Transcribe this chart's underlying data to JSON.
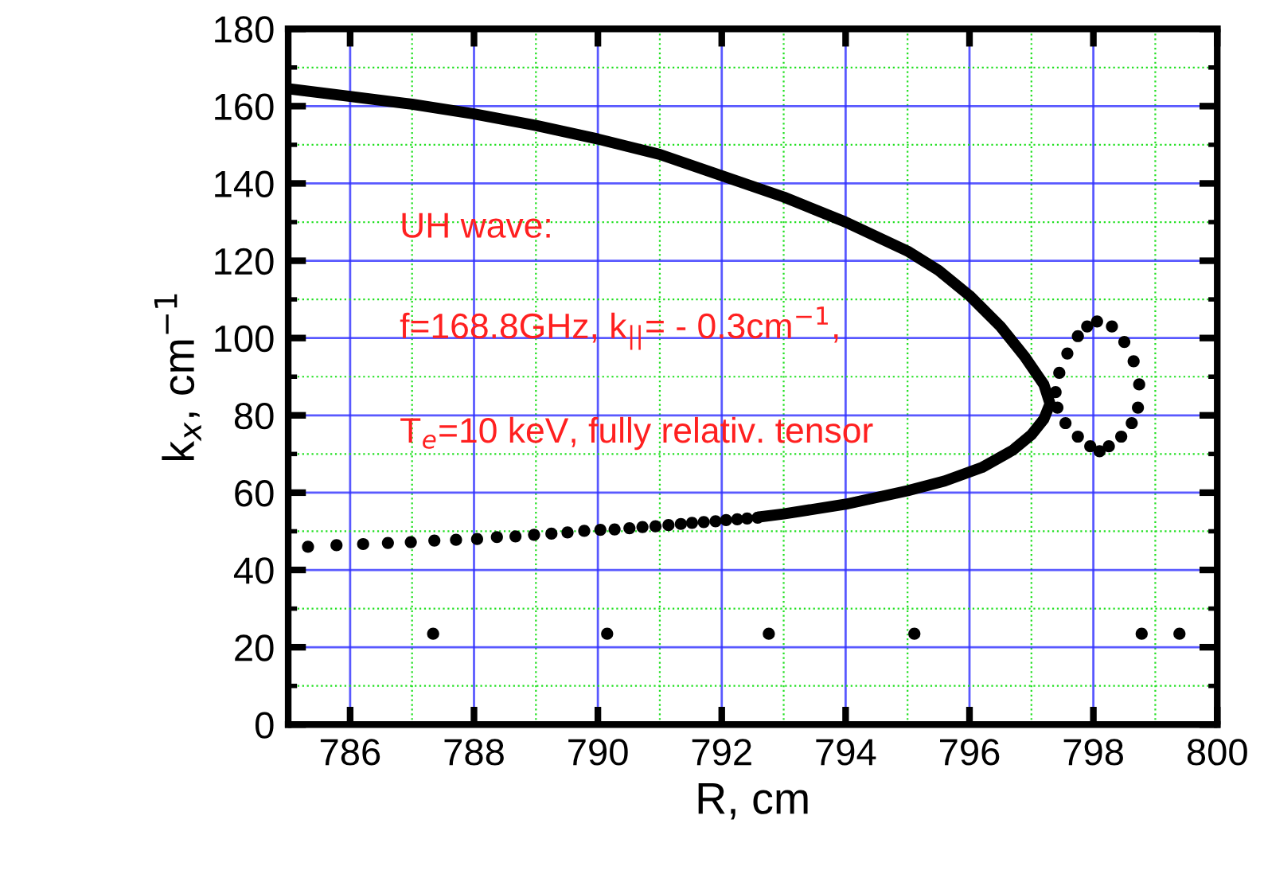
{
  "chart_data": {
    "type": "scatter",
    "xlabel": "R, cm",
    "ylabel": "k$_{x}$, cm$^{−1}$",
    "annotations": [
      "UH wave:",
      "f=168.8GHz, k$_{||}$= - 0.3cm$^{−1}$,",
      "T$_{e}$=10 keV, fully relativ. tensor"
    ],
    "xlim": [
      785,
      800
    ],
    "ylim": [
      0,
      180
    ],
    "xticks": [
      {
        "value": 785,
        "label": null
      },
      786,
      {
        "value": 787,
        "label": null
      },
      788,
      {
        "value": 789,
        "label": null
      },
      790,
      {
        "value": 791,
        "label": null
      },
      792,
      {
        "value": 793,
        "label": null
      },
      794,
      {
        "value": 795,
        "label": null
      },
      796,
      {
        "value": 797,
        "label": null
      },
      798,
      {
        "value": 799,
        "label": null
      },
      800
    ],
    "yticks": [
      0,
      {
        "value": 10,
        "label": null
      },
      20,
      {
        "value": 30,
        "label": null
      },
      40,
      {
        "value": 50,
        "label": null
      },
      60,
      {
        "value": 70,
        "label": null
      },
      80,
      {
        "value": 90,
        "label": null
      },
      100,
      {
        "value": 110,
        "label": null
      },
      120,
      {
        "value": 130,
        "label": null
      },
      140,
      {
        "value": 150,
        "label": null
      },
      160,
      {
        "value": 170,
        "label": null
      },
      180
    ],
    "grid": true,
    "series": [
      {
        "type": "line",
        "color": "#000000",
        "line_style": "solid",
        "marker": "none",
        "x": [
          785,
          786,
          787,
          788,
          789,
          790,
          791,
          792,
          793,
          794,
          795,
          795.5,
          796,
          796.5,
          796.9,
          797.2,
          797.3,
          797.2,
          797,
          796.7,
          796.2,
          795.6,
          795,
          794,
          793,
          792.6
        ],
        "values": [
          164.5,
          162.5,
          160.5,
          158,
          155,
          151.5,
          147.5,
          142,
          136.5,
          130,
          122.5,
          117.5,
          111,
          103,
          95,
          88,
          83,
          79,
          75,
          71,
          66.5,
          63,
          60.5,
          57,
          54.5,
          53.7
        ]
      },
      {
        "color": "#000000",
        "marker": "circle",
        "x": [
          785.32,
          785.78,
          786.21,
          786.61,
          786.98,
          787.36,
          787.71,
          788.05,
          788.37,
          788.67,
          788.97,
          789.25,
          789.51,
          789.78,
          790.04,
          790.27,
          790.51,
          790.72,
          790.93,
          791.14,
          791.34,
          791.52,
          791.71,
          791.9,
          792.07,
          792.25,
          792.41,
          792.58
        ],
        "values": [
          46.0,
          46.4,
          46.7,
          47.0,
          47.2,
          47.6,
          47.8,
          48.0,
          48.5,
          48.7,
          49.1,
          49.4,
          49.7,
          50.1,
          50.4,
          50.5,
          50.8,
          51.1,
          51.3,
          51.6,
          51.9,
          52.2,
          52.4,
          52.6,
          52.9,
          53.1,
          53.3,
          53.5
        ]
      },
      {
        "color": "#000000",
        "marker": "circle",
        "x": [
          798.06,
          798.3,
          798.5,
          798.65,
          798.74,
          798.72,
          798.62,
          798.45,
          798.25,
          798.1,
          797.95,
          797.75,
          797.55,
          797.42,
          797.39,
          797.45,
          797.58,
          797.75,
          797.9
        ],
        "values": [
          104.3,
          103,
          99,
          94,
          88,
          82,
          78,
          74.5,
          72,
          70.7,
          72,
          74.5,
          78,
          82,
          86,
          91,
          96,
          100.5,
          103
        ]
      },
      {
        "color": "#000000",
        "marker": "circle",
        "x": [
          787.34,
          790.15,
          792.76,
          795.11,
          798.78,
          799.39
        ],
        "values": [
          23.5,
          23.5,
          23.5,
          23.5,
          23.5,
          23.5
        ]
      }
    ]
  }
}
